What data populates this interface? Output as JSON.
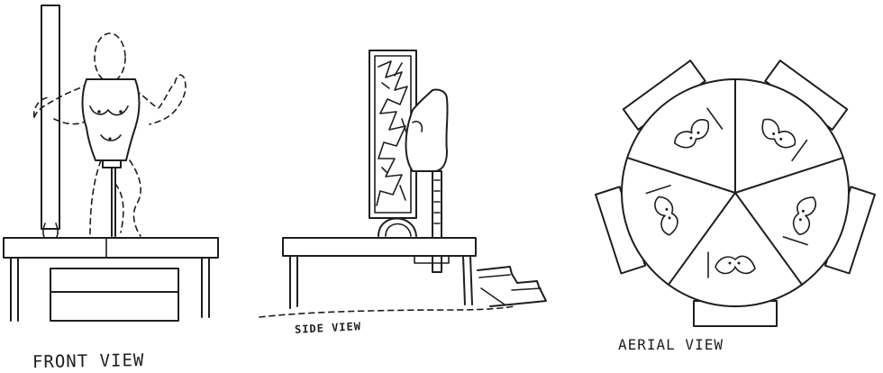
{
  "labels": {
    "front_view": "FRONT VIEW",
    "side_view": "SIDE VIEW",
    "aerial_view": "AERIAL VIEW"
  },
  "colors": {
    "ink": "#1e1e1e",
    "paper": "#ffffff"
  }
}
